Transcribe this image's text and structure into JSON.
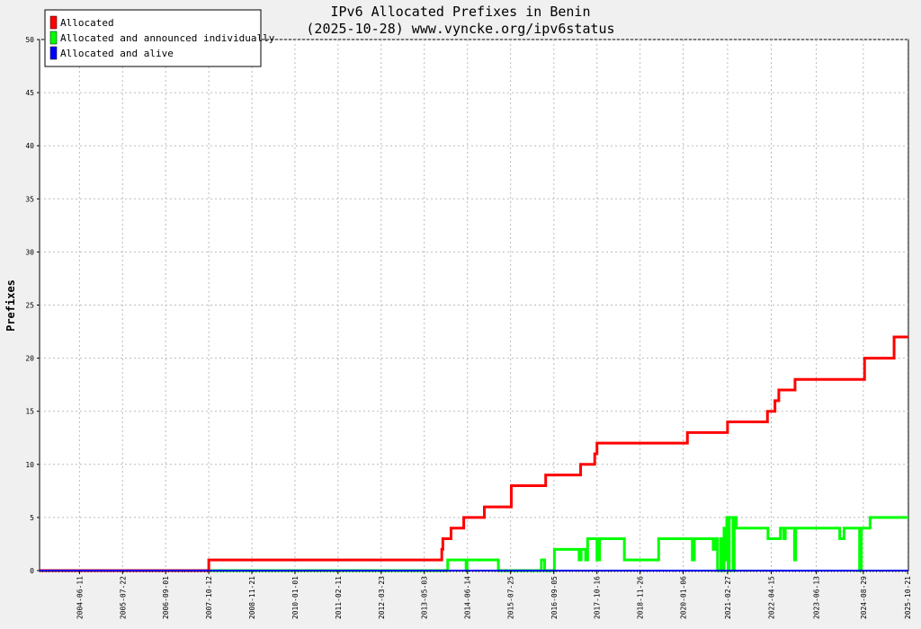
{
  "chart_data": {
    "type": "line",
    "title": "IPv6 Allocated Prefixes in Benin",
    "subtitle": "(2025-10-28) www.vyncke.org/ipv6status",
    "ylabel": "Prefixes",
    "xlim": [
      "2003-06-01",
      "2025-10-28"
    ],
    "ylim": [
      0,
      50
    ],
    "yticks": [
      0,
      5,
      10,
      15,
      20,
      25,
      30,
      35,
      40,
      45,
      50
    ],
    "xticks": [
      "2004-06-11",
      "2005-07-22",
      "2006-09-01",
      "2007-10-12",
      "2008-11-21",
      "2010-01-01",
      "2011-02-11",
      "2012-03-23",
      "2013-05-03",
      "2014-06-14",
      "2015-07-25",
      "2016-09-05",
      "2017-10-16",
      "2018-11-26",
      "2020-01-06",
      "2021-02-27",
      "2022-04-15",
      "2023-06-13",
      "2024-08-29",
      "2025-10-21"
    ],
    "grid": true,
    "legend_position": "top-left",
    "series": [
      {
        "name": "Allocated",
        "color": "#ff0000",
        "points": [
          [
            "2003-06-01",
            0
          ],
          [
            "2007-10-12",
            0
          ],
          [
            "2007-10-12",
            1
          ],
          [
            "2013-10-15",
            1
          ],
          [
            "2013-10-15",
            2
          ],
          [
            "2013-10-25",
            2
          ],
          [
            "2013-10-25",
            3
          ],
          [
            "2014-01-10",
            3
          ],
          [
            "2014-01-10",
            4
          ],
          [
            "2014-05-10",
            4
          ],
          [
            "2014-05-10",
            5
          ],
          [
            "2014-11-20",
            5
          ],
          [
            "2014-11-20",
            6
          ],
          [
            "2015-08-01",
            6
          ],
          [
            "2015-08-01",
            8
          ],
          [
            "2016-06-20",
            8
          ],
          [
            "2016-06-20",
            9
          ],
          [
            "2017-05-15",
            9
          ],
          [
            "2017-05-15",
            10
          ],
          [
            "2017-09-25",
            10
          ],
          [
            "2017-09-25",
            11
          ],
          [
            "2017-10-16",
            11
          ],
          [
            "2017-10-16",
            12
          ],
          [
            "2020-02-15",
            12
          ],
          [
            "2020-02-15",
            13
          ],
          [
            "2021-02-27",
            13
          ],
          [
            "2021-02-27",
            14
          ],
          [
            "2022-03-10",
            14
          ],
          [
            "2022-03-10",
            15
          ],
          [
            "2022-05-20",
            15
          ],
          [
            "2022-05-20",
            16
          ],
          [
            "2022-06-25",
            16
          ],
          [
            "2022-06-25",
            17
          ],
          [
            "2022-11-25",
            17
          ],
          [
            "2022-11-25",
            18
          ],
          [
            "2024-09-10",
            18
          ],
          [
            "2024-09-10",
            20
          ],
          [
            "2025-06-15",
            20
          ],
          [
            "2025-06-15",
            22
          ],
          [
            "2025-10-28",
            22
          ]
        ]
      },
      {
        "name": "Allocated and announced individually",
        "color": "#00ff00",
        "points": [
          [
            "2003-06-01",
            0
          ],
          [
            "2013-12-10",
            0
          ],
          [
            "2013-12-10",
            1
          ],
          [
            "2014-06-01",
            1
          ],
          [
            "2014-06-01",
            0
          ],
          [
            "2014-06-10",
            0
          ],
          [
            "2014-06-10",
            1
          ],
          [
            "2015-04-01",
            1
          ],
          [
            "2015-04-01",
            0
          ],
          [
            "2016-05-10",
            0
          ],
          [
            "2016-05-10",
            1
          ],
          [
            "2016-06-10",
            1
          ],
          [
            "2016-06-10",
            0
          ],
          [
            "2016-09-10",
            0
          ],
          [
            "2016-09-10",
            2
          ],
          [
            "2017-05-01",
            2
          ],
          [
            "2017-05-01",
            1
          ],
          [
            "2017-05-20",
            1
          ],
          [
            "2017-05-20",
            2
          ],
          [
            "2017-07-01",
            2
          ],
          [
            "2017-07-01",
            1
          ],
          [
            "2017-07-20",
            1
          ],
          [
            "2017-07-20",
            3
          ],
          [
            "2017-10-16",
            3
          ],
          [
            "2017-10-16",
            1
          ],
          [
            "2017-11-10",
            1
          ],
          [
            "2017-11-10",
            3
          ],
          [
            "2018-07-01",
            3
          ],
          [
            "2018-07-01",
            1
          ],
          [
            "2019-05-20",
            1
          ],
          [
            "2019-05-20",
            3
          ],
          [
            "2020-04-01",
            3
          ],
          [
            "2020-04-01",
            1
          ],
          [
            "2020-04-20",
            1
          ],
          [
            "2020-04-20",
            3
          ],
          [
            "2020-10-15",
            3
          ],
          [
            "2020-10-15",
            2
          ],
          [
            "2020-11-05",
            2
          ],
          [
            "2020-11-05",
            3
          ],
          [
            "2020-11-25",
            3
          ],
          [
            "2020-11-25",
            0
          ],
          [
            "2020-12-25",
            0
          ],
          [
            "2020-12-25",
            3
          ],
          [
            "2021-01-10",
            3
          ],
          [
            "2021-01-10",
            0
          ],
          [
            "2021-01-25",
            0
          ],
          [
            "2021-01-25",
            4
          ],
          [
            "2021-02-05",
            4
          ],
          [
            "2021-02-05",
            1
          ],
          [
            "2021-02-20",
            1
          ],
          [
            "2021-02-20",
            5
          ],
          [
            "2021-03-05",
            5
          ],
          [
            "2021-03-05",
            0
          ],
          [
            "2021-03-15",
            0
          ],
          [
            "2021-03-15",
            5
          ],
          [
            "2021-04-20",
            5
          ],
          [
            "2021-04-20",
            0
          ],
          [
            "2021-05-01",
            0
          ],
          [
            "2021-05-01",
            5
          ],
          [
            "2021-05-20",
            5
          ],
          [
            "2021-05-20",
            4
          ],
          [
            "2022-03-15",
            4
          ],
          [
            "2022-03-15",
            3
          ],
          [
            "2022-07-10",
            3
          ],
          [
            "2022-07-10",
            4
          ],
          [
            "2022-08-10",
            4
          ],
          [
            "2022-08-10",
            3
          ],
          [
            "2022-08-25",
            3
          ],
          [
            "2022-08-25",
            4
          ],
          [
            "2022-11-20",
            4
          ],
          [
            "2022-11-20",
            1
          ],
          [
            "2022-12-01",
            1
          ],
          [
            "2022-12-01",
            4
          ],
          [
            "2024-01-20",
            4
          ],
          [
            "2024-01-20",
            3
          ],
          [
            "2024-03-01",
            3
          ],
          [
            "2024-03-01",
            4
          ],
          [
            "2024-07-25",
            4
          ],
          [
            "2024-07-25",
            0
          ],
          [
            "2024-08-10",
            0
          ],
          [
            "2024-08-10",
            4
          ],
          [
            "2024-11-01",
            4
          ],
          [
            "2024-11-01",
            5
          ],
          [
            "2025-10-28",
            5
          ]
        ]
      },
      {
        "name": "Allocated and alive",
        "color": "#0000ff",
        "points": [
          [
            "2003-06-01",
            0
          ],
          [
            "2025-10-28",
            0
          ]
        ]
      }
    ]
  }
}
